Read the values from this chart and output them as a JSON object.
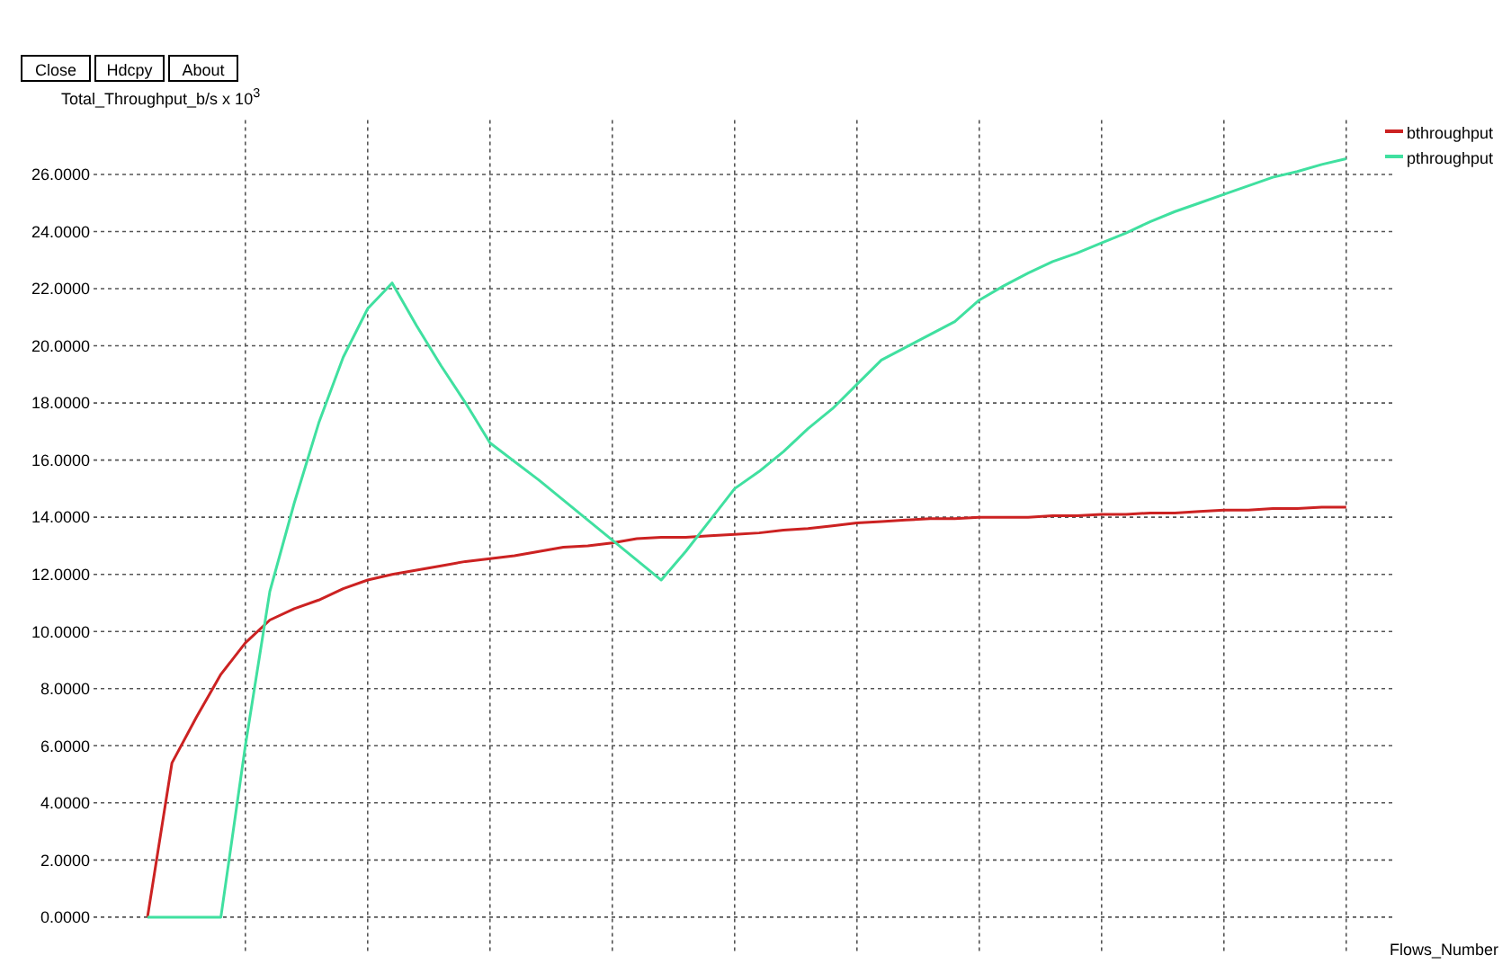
{
  "chart_data": {
    "type": "line",
    "ylabel": "Total_Throughput_b/s x 10$^{3}$",
    "xlabel": "Flows_Number",
    "annotations": [
      "Close",
      "Hdcpy",
      "About"
    ],
    "categories": [
      null,
      null,
      null,
      null,
      null,
      null,
      null,
      null,
      null,
      null,
      null,
      null,
      null,
      null,
      null,
      null,
      null,
      null,
      null,
      null,
      null,
      null,
      null,
      null,
      null,
      null,
      null,
      null,
      null,
      null,
      null,
      null,
      null,
      null,
      null,
      null,
      null,
      null,
      null,
      null,
      null,
      null,
      null,
      null,
      null,
      null,
      null,
      null,
      null,
      null
    ],
    "series": [
      {
        "name": "bthroughput",
        "color": "#cc2222",
        "values": [
          0,
          5.4,
          7.0,
          8.5,
          9.6,
          10.4,
          10.8,
          11.1,
          11.5,
          11.8,
          12.0,
          12.15,
          12.3,
          12.45,
          12.55,
          12.65,
          12.8,
          12.95,
          13.0,
          13.1,
          13.25,
          13.3,
          13.3,
          13.35,
          13.4,
          13.45,
          13.55,
          13.6,
          13.7,
          13.8,
          13.85,
          13.9,
          13.95,
          13.95,
          14.0,
          14.0,
          14.0,
          14.05,
          14.05,
          14.1,
          14.1,
          14.15,
          14.15,
          14.2,
          14.25,
          14.25,
          14.3,
          14.3,
          14.35,
          14.35
        ]
      },
      {
        "name": "pthroughput",
        "color": "#40e0a0",
        "values": [
          0,
          0,
          0,
          0,
          6.0,
          11.4,
          14.5,
          17.3,
          19.6,
          21.3,
          22.2,
          20.7,
          19.3,
          18.0,
          16.6,
          15.95,
          15.3,
          14.6,
          13.9,
          13.2,
          12.5,
          11.8,
          12.8,
          13.9,
          15.0,
          15.6,
          16.3,
          17.1,
          17.8,
          18.65,
          19.5,
          19.95,
          20.4,
          20.85,
          21.6,
          22.1,
          22.55,
          22.95,
          23.25,
          23.6,
          23.95,
          24.35,
          24.7,
          25.0,
          25.3,
          25.6,
          25.9,
          26.1,
          26.35,
          26.55
        ]
      }
    ],
    "ylim": [
      -1.2,
      27.9
    ],
    "yticks": [
      {
        "value": 0,
        "label": "0.0000"
      },
      {
        "value": 2,
        "label": "2.0000"
      },
      {
        "value": 4,
        "label": "4.0000"
      },
      {
        "value": 6,
        "label": "6.0000"
      },
      {
        "value": 8,
        "label": "8.0000"
      },
      {
        "value": 10,
        "label": "10.0000"
      },
      {
        "value": 12,
        "label": "12.0000"
      },
      {
        "value": 14,
        "label": "14.0000"
      },
      {
        "value": 16,
        "label": "16.0000"
      },
      {
        "value": 18,
        "label": "18.0000"
      },
      {
        "value": 20,
        "label": "20.0000"
      },
      {
        "value": 22,
        "label": "22.0000"
      },
      {
        "value": 24,
        "label": "24.0000"
      },
      {
        "value": 26,
        "label": "26.0000"
      }
    ],
    "grid": true,
    "legend": "top right",
    "marker": "none",
    "line_style": "solid"
  }
}
